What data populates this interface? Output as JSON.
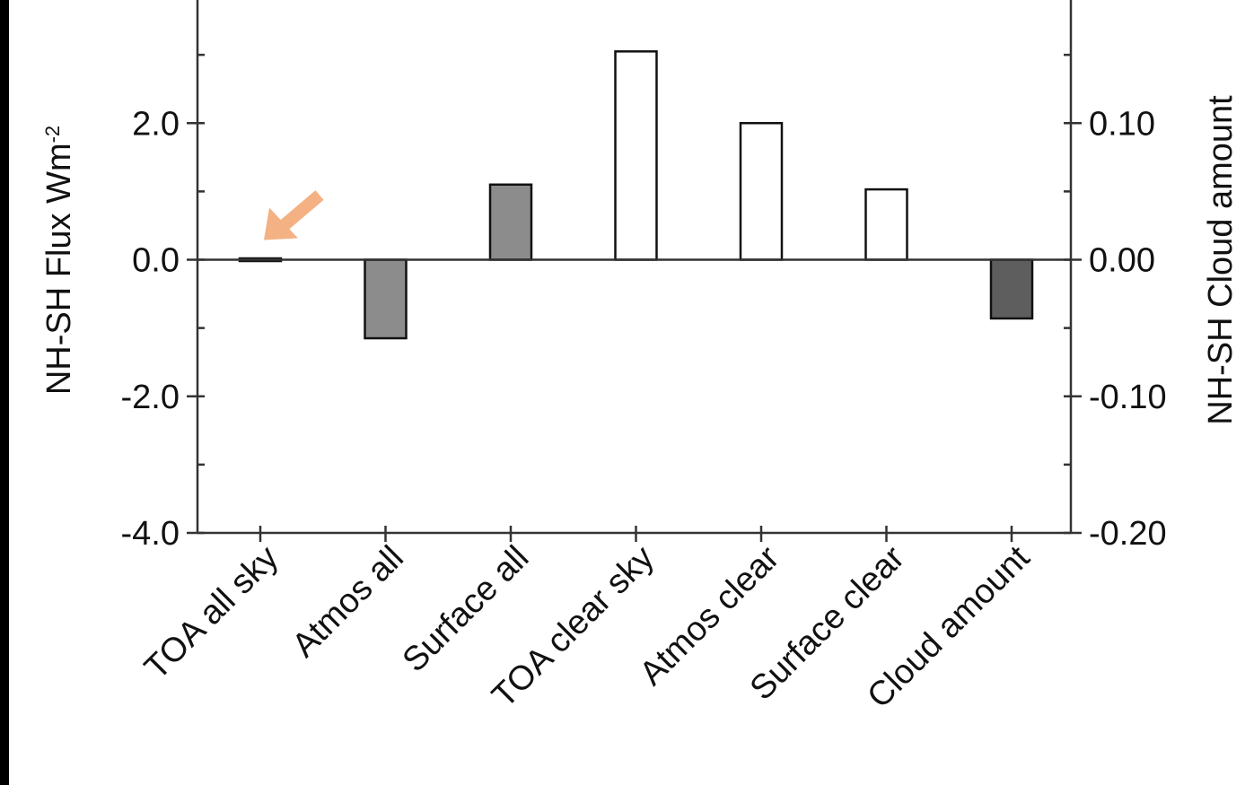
{
  "chart_data": {
    "type": "bar",
    "categories": [
      "TOA all sky",
      "Atmos all",
      "Surface all",
      "TOA clear sky",
      "Atmos clear",
      "Surface clear",
      "Cloud amount"
    ],
    "values": [
      0.0,
      -1.15,
      1.1,
      3.05,
      2.0,
      1.03,
      -0.043
    ],
    "value_axis": [
      "left",
      "left",
      "left",
      "left",
      "left",
      "left",
      "right"
    ],
    "bar_colors": [
      "#111111",
      "#8c8c8c",
      "#8c8c8c",
      "#ffffff",
      "#ffffff",
      "#ffffff",
      "#5e5e5e"
    ],
    "title": "",
    "ylabel": "NH-SH Flux Wm",
    "ylabel_superscript": "-2",
    "y2label": "NH-SH Cloud amount",
    "ylim": [
      -4.0,
      4.0
    ],
    "y2lim": [
      -0.2,
      0.2
    ],
    "yticks": [
      -4.0,
      -2.0,
      0.0,
      2.0
    ],
    "ytick_labels": [
      "-4.0",
      "-2.0",
      "0.0",
      "2.0"
    ],
    "y2ticks": [
      -0.2,
      -0.1,
      0.0,
      0.1
    ],
    "y2tick_labels": [
      "-0.20",
      "-0.10",
      "0.00",
      "0.10"
    ],
    "annotation": {
      "type": "arrow",
      "color": "#f4b183",
      "points_to": "TOA all sky"
    },
    "grid": false
  }
}
